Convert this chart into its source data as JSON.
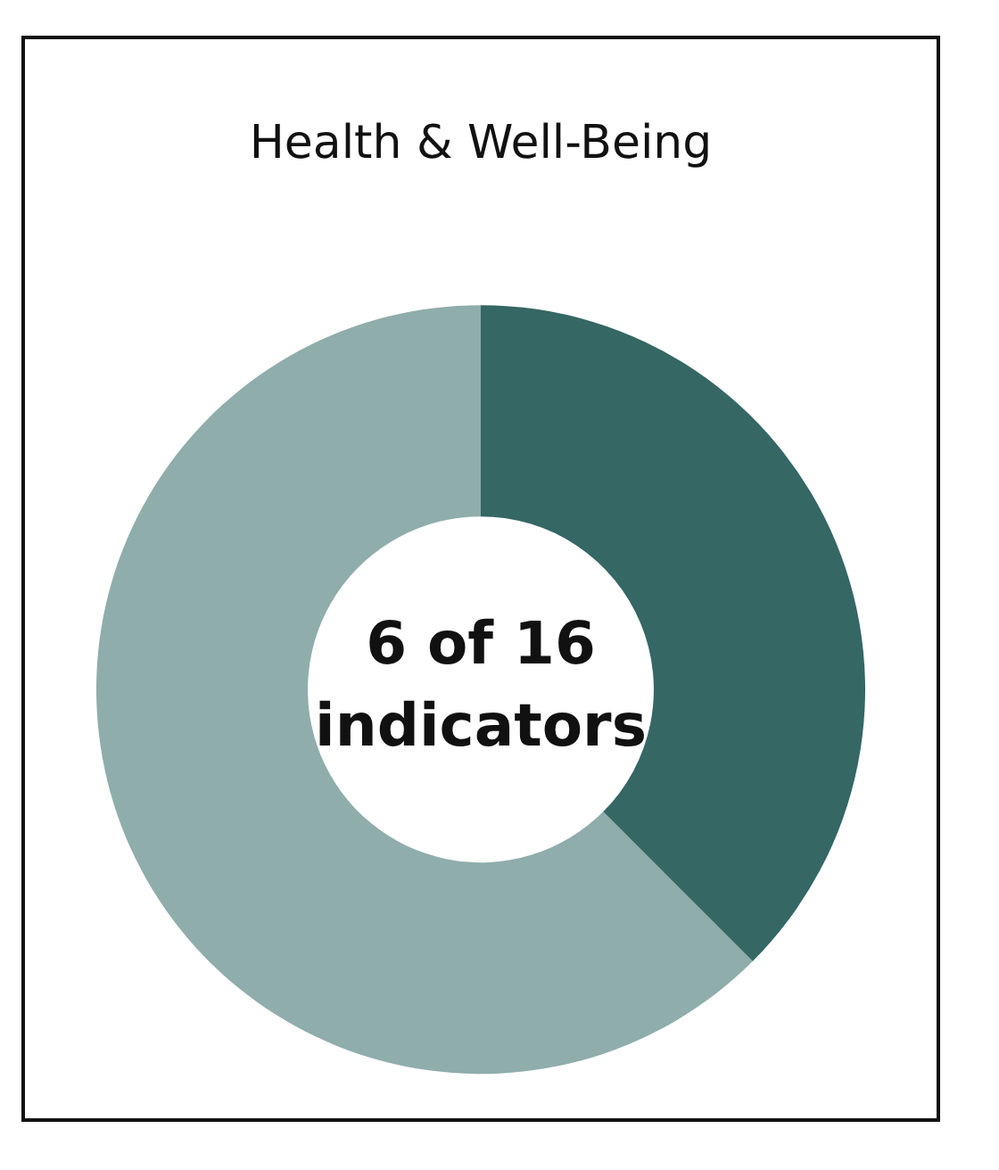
{
  "chart_data": {
    "type": "donut",
    "title": "Health & Well-Being",
    "categories": [
      null,
      null
    ],
    "values": [
      37.5,
      62.5
    ],
    "colors": [
      "#356764",
      "#8fadab"
    ],
    "annotations": [
      "6 of 16 indicators"
    ],
    "legend": false
  }
}
